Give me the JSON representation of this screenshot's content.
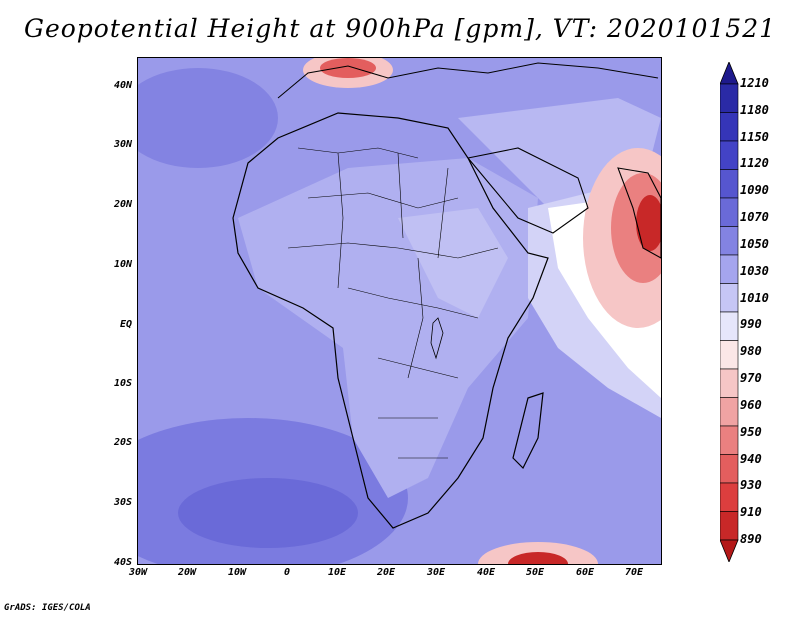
{
  "title": "Geopotential Height at 900hPa [gpm], VT: 2020101521",
  "footer": "GrADS: IGES/COLA",
  "y_axis_labels": [
    "40N",
    "30N",
    "20N",
    "10N",
    "EQ",
    "10S",
    "20S",
    "30S",
    "40S"
  ],
  "x_axis_labels": [
    "30W",
    "20W",
    "10W",
    "0",
    "10E",
    "20E",
    "30E",
    "40E",
    "50E",
    "60E",
    "70E"
  ],
  "colorbar": {
    "labels": [
      "1210",
      "1180",
      "1150",
      "1120",
      "1090",
      "1070",
      "1050",
      "1030",
      "1010",
      "990",
      "980",
      "970",
      "960",
      "950",
      "940",
      "930",
      "910",
      "890"
    ],
    "colors": [
      "#1e1a8c",
      "#2a2aa6",
      "#3535b8",
      "#4343c6",
      "#5656cf",
      "#6a6ad8",
      "#8383e2",
      "#a5a5ee",
      "#c6c6f5",
      "#e6e6fb",
      "#fbe7e7",
      "#f6c6c6",
      "#f0a3a3",
      "#ea8080",
      "#e35e5e",
      "#dc3e3e",
      "#c82828",
      "#b41818"
    ]
  },
  "field_colors": {
    "deep_blue": "#6b6be0",
    "mid_blue": "#8e8ee8",
    "light_blue": "#b0b0f0",
    "pale_blue": "#d3d3f7",
    "white": "#ffffff",
    "pale_red": "#f6c6c6",
    "red": "#e35e5e",
    "dark_red": "#c82828"
  }
}
